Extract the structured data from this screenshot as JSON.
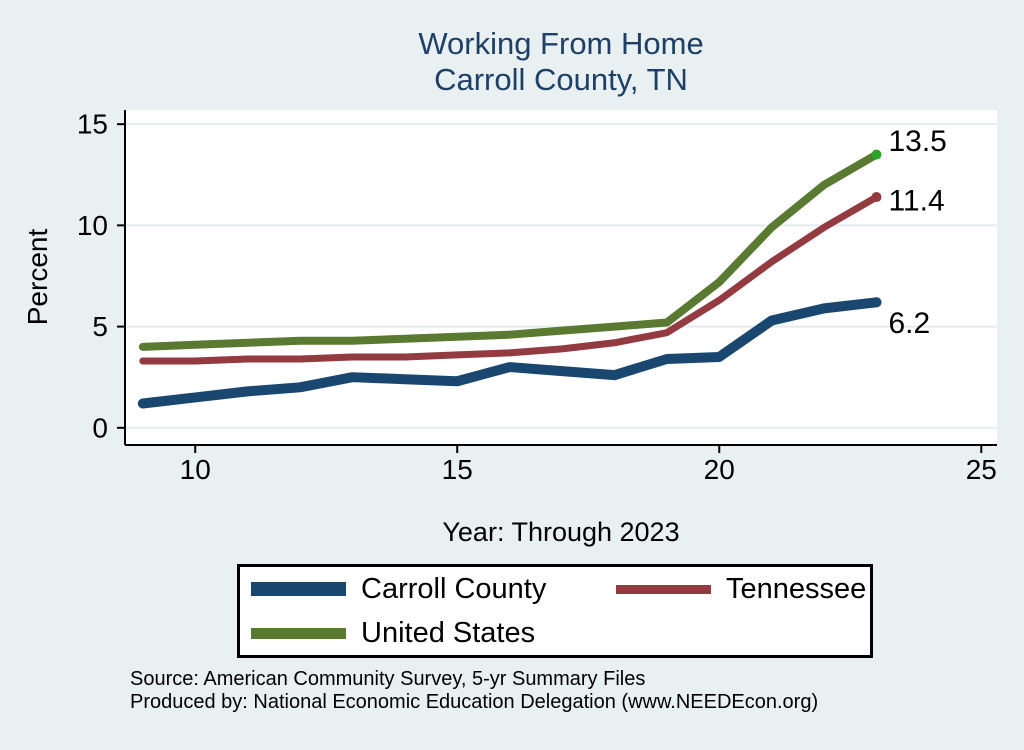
{
  "title": {
    "line1": "Working From Home",
    "line2": "Carroll County, TN"
  },
  "chart_data": {
    "type": "line",
    "title": "Working From Home Carroll County, TN",
    "xlabel": "Year: Through 2023",
    "ylabel": "Percent",
    "x": [
      9,
      10,
      11,
      12,
      13,
      14,
      15,
      16,
      17,
      18,
      19,
      20,
      21,
      22,
      23
    ],
    "series": [
      {
        "name": "Carroll County",
        "color": "#1a476f",
        "stroke_width": 10,
        "values": [
          1.2,
          1.5,
          1.8,
          2.0,
          2.5,
          2.4,
          2.3,
          3.0,
          2.8,
          2.6,
          3.4,
          3.5,
          5.3,
          5.9,
          6.2
        ],
        "end_label": "6.2",
        "end_dot_color": "#1a476f",
        "label_dy": 21
      },
      {
        "name": "Tennessee",
        "color": "#943b41",
        "stroke_width": 7,
        "values": [
          3.3,
          3.3,
          3.4,
          3.4,
          3.5,
          3.5,
          3.6,
          3.7,
          3.9,
          4.2,
          4.7,
          6.3,
          8.2,
          9.9,
          11.4
        ],
        "end_label": "11.4",
        "end_dot_color": "#943b41",
        "label_dy": 4
      },
      {
        "name": "United States",
        "color": "#5a7a32",
        "stroke_width": 8,
        "values": [
          4.0,
          4.1,
          4.2,
          4.3,
          4.3,
          4.4,
          4.5,
          4.6,
          4.8,
          5.0,
          5.2,
          7.2,
          9.9,
          12.0,
          13.5
        ],
        "end_label": "13.5",
        "end_dot_color": "#2ba428",
        "label_dy": -13
      }
    ],
    "x_ticks": [
      10,
      15,
      20,
      25
    ],
    "y_ticks": [
      0,
      5,
      10,
      15
    ],
    "xlim": [
      8.66,
      25.3
    ],
    "ylim": [
      -0.85,
      15.7
    ],
    "grid": true,
    "legend_position": "bottom",
    "colors": {
      "background": "#e9f0f2",
      "plot_background": "#ffffff",
      "gridline": "#e3edef",
      "axis": "#000000",
      "title": "#1e3f66"
    }
  },
  "footer": {
    "line1": "Source: American Community Survey, 5-yr Summary Files",
    "line2": "Produced by: National Economic Education Delegation (www.NEEDEcon.org)"
  }
}
